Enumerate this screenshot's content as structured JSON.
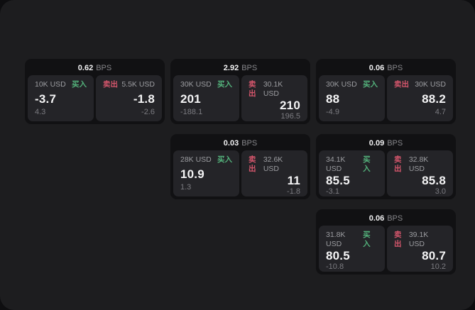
{
  "labels": {
    "bps": "BPS",
    "buy": "买入",
    "sell": "卖出"
  },
  "colors": {
    "buy": "#54b37c",
    "sell": "#d5566c"
  },
  "cards": [
    {
      "bps": "0.62",
      "buy": {
        "amount": "10K USD",
        "price": "-3.7",
        "delta": "4.3"
      },
      "sell": {
        "amount": "5.5K USD",
        "price": "-1.8",
        "delta": "-2.6"
      }
    },
    {
      "bps": "2.92",
      "buy": {
        "amount": "30K USD",
        "price": "201",
        "delta": "-188.1"
      },
      "sell": {
        "amount": "30.1K USD",
        "price": "210",
        "delta": "196.5"
      }
    },
    {
      "bps": "0.06",
      "buy": {
        "amount": "30K USD",
        "price": "88",
        "delta": "-4.9"
      },
      "sell": {
        "amount": "30K USD",
        "price": "88.2",
        "delta": "4.7"
      }
    },
    {
      "bps": "0.03",
      "buy": {
        "amount": "28K USD",
        "price": "10.9",
        "delta": "1.3"
      },
      "sell": {
        "amount": "32.6K USD",
        "price": "11",
        "delta": "-1.8"
      }
    },
    {
      "bps": "0.09",
      "buy": {
        "amount": "34.1K USD",
        "price": "85.5",
        "delta": "-3.1"
      },
      "sell": {
        "amount": "32.8K USD",
        "price": "85.8",
        "delta": "3.0"
      }
    },
    {
      "bps": "0.06",
      "buy": {
        "amount": "31.8K USD",
        "price": "80.5",
        "delta": "-10.8"
      },
      "sell": {
        "amount": "39.1K USD",
        "price": "80.7",
        "delta": "10.2"
      }
    }
  ]
}
